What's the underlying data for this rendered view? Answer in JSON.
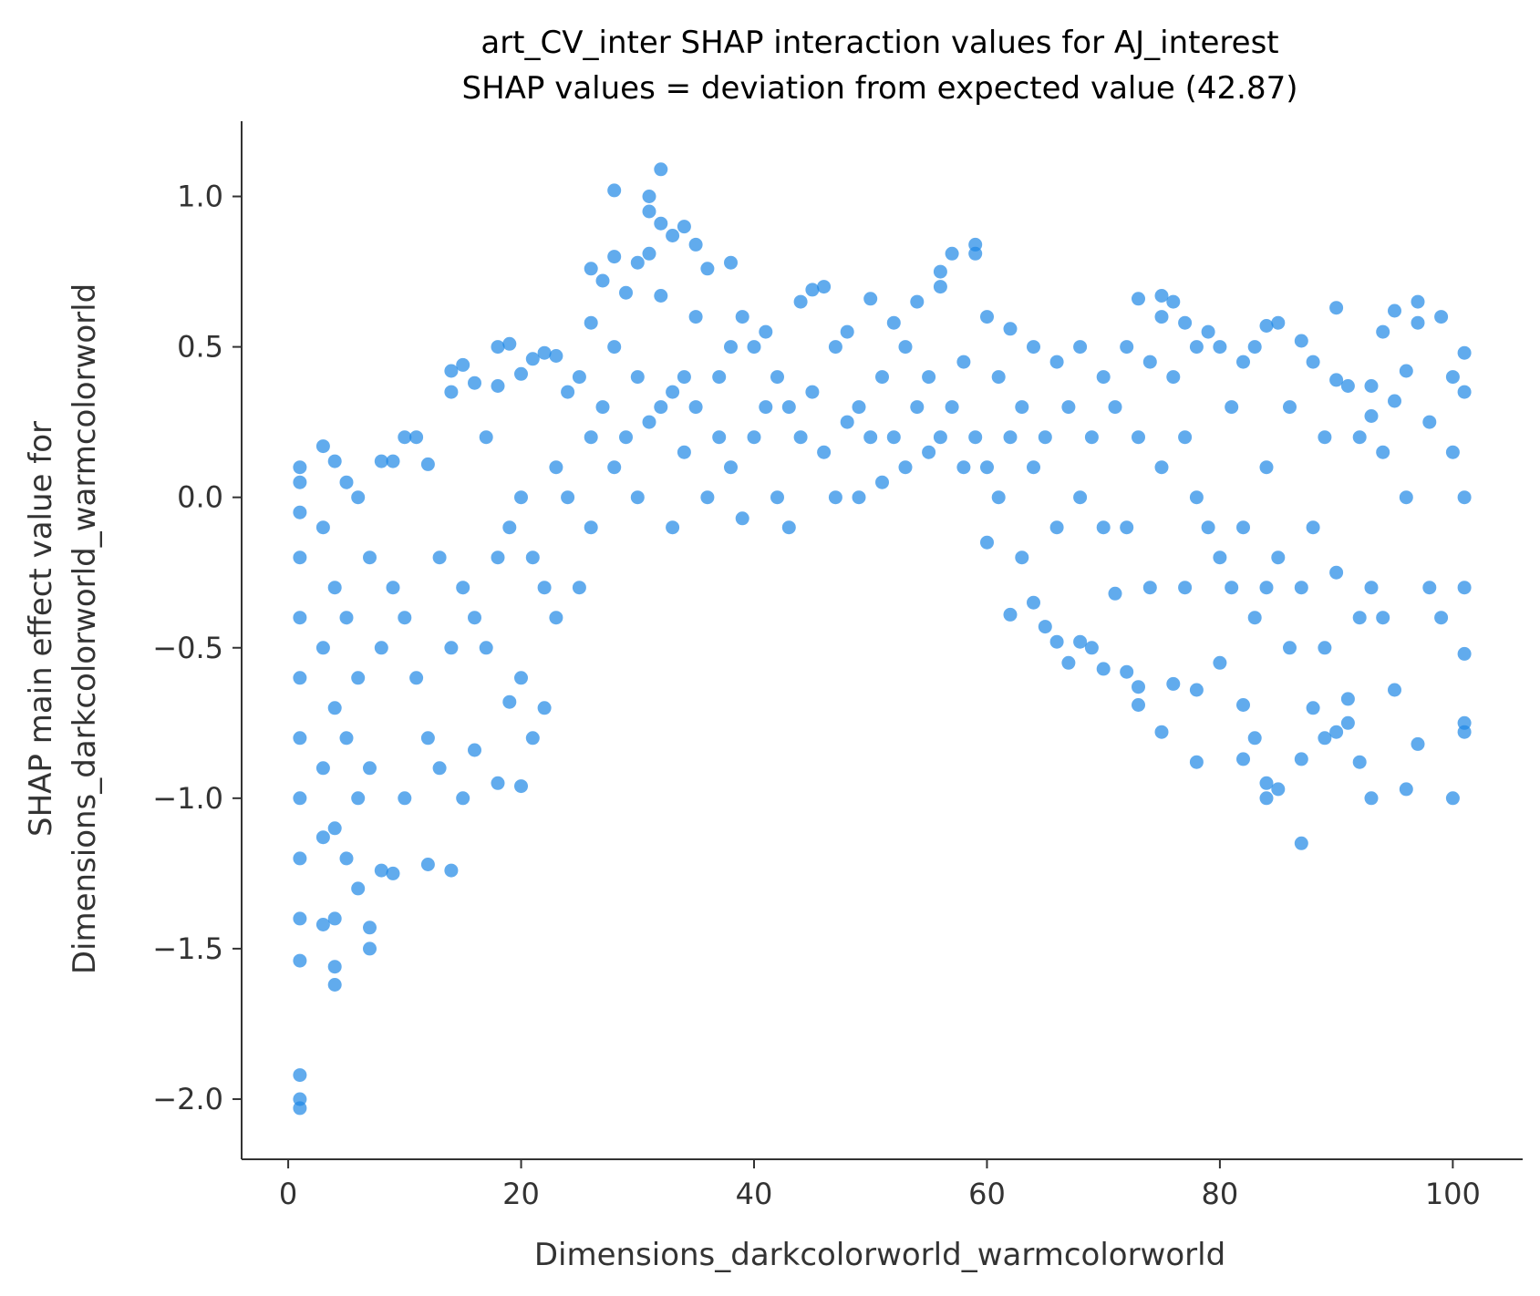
{
  "chart_data": {
    "type": "scatter",
    "title_line1": "art_CV_inter SHAP interaction values for AJ_interest",
    "title_line2": "SHAP values = deviation from expected value (42.87)",
    "xlabel": "Dimensions_darkcolorworld_warmcolorworld",
    "ylabel_line1": "SHAP main effect value for",
    "ylabel_line2": "Dimensions_darkcolorworld_warmcolorworld",
    "xlim": [
      -4,
      106
    ],
    "ylim": [
      -2.2,
      1.25
    ],
    "xticks": [
      0,
      20,
      40,
      60,
      80,
      100
    ],
    "yticks": [
      -2.0,
      -1.5,
      -1.0,
      -0.5,
      0.0,
      0.5,
      1.0
    ],
    "x_tick_labels": [
      "0",
      "20",
      "40",
      "60",
      "80",
      "100"
    ],
    "y_tick_labels": [
      "−2.0",
      "−1.5",
      "−1.0",
      "−0.5",
      "0.0",
      "0.5",
      "1.0"
    ],
    "marker_color": "#1E88E5",
    "grid": false,
    "series": [
      {
        "points": [
          [
            1,
            0.1
          ],
          [
            1,
            0.05
          ],
          [
            1,
            -0.05
          ],
          [
            1,
            -0.2
          ],
          [
            1,
            -0.4
          ],
          [
            1,
            -0.6
          ],
          [
            1,
            -0.8
          ],
          [
            1,
            -1.0
          ],
          [
            1,
            -1.2
          ],
          [
            1,
            -1.4
          ],
          [
            1,
            -1.54
          ],
          [
            1,
            -1.92
          ],
          [
            1,
            -2.0
          ],
          [
            1,
            -2.03
          ],
          [
            3,
            0.17
          ],
          [
            3,
            -0.1
          ],
          [
            3,
            -0.5
          ],
          [
            3,
            -0.9
          ],
          [
            3,
            -1.13
          ],
          [
            3,
            -1.42
          ],
          [
            4,
            0.12
          ],
          [
            4,
            -0.3
          ],
          [
            4,
            -0.7
          ],
          [
            4,
            -1.1
          ],
          [
            4,
            -1.4
          ],
          [
            4,
            -1.56
          ],
          [
            4,
            -1.62
          ],
          [
            5,
            0.05
          ],
          [
            5,
            -0.4
          ],
          [
            5,
            -0.8
          ],
          [
            5,
            -1.2
          ],
          [
            6,
            0.0
          ],
          [
            6,
            -0.6
          ],
          [
            6,
            -1.0
          ],
          [
            6,
            -1.3
          ],
          [
            7,
            -0.2
          ],
          [
            7,
            -0.9
          ],
          [
            7,
            -1.43
          ],
          [
            7,
            -1.5
          ],
          [
            8,
            0.12
          ],
          [
            8,
            -0.5
          ],
          [
            8,
            -1.24
          ],
          [
            9,
            0.12
          ],
          [
            9,
            -0.3
          ],
          [
            9,
            -1.25
          ],
          [
            10,
            0.2
          ],
          [
            10,
            -0.4
          ],
          [
            10,
            -1.0
          ],
          [
            11,
            0.2
          ],
          [
            11,
            -0.6
          ],
          [
            12,
            0.11
          ],
          [
            12,
            -0.8
          ],
          [
            12,
            -1.22
          ],
          [
            13,
            -0.2
          ],
          [
            13,
            -0.9
          ],
          [
            14,
            0.42
          ],
          [
            14,
            0.35
          ],
          [
            14,
            -0.5
          ],
          [
            14,
            -1.24
          ],
          [
            15,
            0.44
          ],
          [
            15,
            -0.3
          ],
          [
            15,
            -1.0
          ],
          [
            16,
            0.38
          ],
          [
            16,
            -0.4
          ],
          [
            16,
            -0.84
          ],
          [
            17,
            0.2
          ],
          [
            17,
            -0.5
          ],
          [
            18,
            0.5
          ],
          [
            18,
            0.37
          ],
          [
            18,
            -0.2
          ],
          [
            18,
            -0.95
          ],
          [
            19,
            0.51
          ],
          [
            19,
            -0.1
          ],
          [
            19,
            -0.68
          ],
          [
            20,
            0.41
          ],
          [
            20,
            0.0
          ],
          [
            20,
            -0.6
          ],
          [
            20,
            -0.96
          ],
          [
            21,
            0.46
          ],
          [
            21,
            -0.2
          ],
          [
            21,
            -0.8
          ],
          [
            22,
            0.48
          ],
          [
            22,
            -0.3
          ],
          [
            22,
            -0.7
          ],
          [
            23,
            0.47
          ],
          [
            23,
            0.1
          ],
          [
            23,
            -0.4
          ],
          [
            24,
            0.35
          ],
          [
            24,
            0.0
          ],
          [
            25,
            0.4
          ],
          [
            25,
            -0.3
          ],
          [
            26,
            0.76
          ],
          [
            26,
            0.58
          ],
          [
            26,
            0.2
          ],
          [
            26,
            -0.1
          ],
          [
            27,
            0.72
          ],
          [
            27,
            0.3
          ],
          [
            28,
            1.02
          ],
          [
            28,
            0.8
          ],
          [
            28,
            0.5
          ],
          [
            28,
            0.1
          ],
          [
            29,
            0.68
          ],
          [
            29,
            0.2
          ],
          [
            30,
            0.78
          ],
          [
            30,
            0.4
          ],
          [
            30,
            0.0
          ],
          [
            31,
            1.0
          ],
          [
            31,
            0.95
          ],
          [
            31,
            0.81
          ],
          [
            31,
            0.25
          ],
          [
            32,
            1.09
          ],
          [
            32,
            0.91
          ],
          [
            32,
            0.67
          ],
          [
            32,
            0.3
          ],
          [
            33,
            0.87
          ],
          [
            33,
            0.35
          ],
          [
            33,
            -0.1
          ],
          [
            34,
            0.9
          ],
          [
            34,
            0.4
          ],
          [
            34,
            0.15
          ],
          [
            35,
            0.84
          ],
          [
            35,
            0.6
          ],
          [
            35,
            0.3
          ],
          [
            36,
            0.76
          ],
          [
            36,
            0.0
          ],
          [
            37,
            0.4
          ],
          [
            37,
            0.2
          ],
          [
            38,
            0.78
          ],
          [
            38,
            0.5
          ],
          [
            38,
            0.1
          ],
          [
            39,
            0.6
          ],
          [
            39,
            -0.07
          ],
          [
            40,
            0.5
          ],
          [
            40,
            0.2
          ],
          [
            41,
            0.55
          ],
          [
            41,
            0.3
          ],
          [
            42,
            0.4
          ],
          [
            42,
            0.0
          ],
          [
            43,
            0.3
          ],
          [
            43,
            -0.1
          ],
          [
            44,
            0.65
          ],
          [
            44,
            0.2
          ],
          [
            45,
            0.69
          ],
          [
            45,
            0.35
          ],
          [
            46,
            0.7
          ],
          [
            46,
            0.15
          ],
          [
            47,
            0.5
          ],
          [
            47,
            0.0
          ],
          [
            48,
            0.55
          ],
          [
            48,
            0.25
          ],
          [
            49,
            0.3
          ],
          [
            49,
            0.0
          ],
          [
            50,
            0.66
          ],
          [
            50,
            0.2
          ],
          [
            51,
            0.4
          ],
          [
            51,
            0.05
          ],
          [
            52,
            0.58
          ],
          [
            52,
            0.2
          ],
          [
            53,
            0.5
          ],
          [
            53,
            0.1
          ],
          [
            54,
            0.65
          ],
          [
            54,
            0.3
          ],
          [
            55,
            0.4
          ],
          [
            55,
            0.15
          ],
          [
            56,
            0.75
          ],
          [
            56,
            0.7
          ],
          [
            56,
            0.2
          ],
          [
            57,
            0.81
          ],
          [
            57,
            0.3
          ],
          [
            58,
            0.45
          ],
          [
            58,
            0.1
          ],
          [
            59,
            0.84
          ],
          [
            59,
            0.81
          ],
          [
            59,
            0.2
          ],
          [
            60,
            0.6
          ],
          [
            60,
            0.1
          ],
          [
            60,
            -0.15
          ],
          [
            61,
            0.4
          ],
          [
            61,
            0.0
          ],
          [
            62,
            0.56
          ],
          [
            62,
            0.2
          ],
          [
            62,
            -0.39
          ],
          [
            63,
            0.3
          ],
          [
            63,
            -0.2
          ],
          [
            64,
            0.5
          ],
          [
            64,
            0.1
          ],
          [
            64,
            -0.35
          ],
          [
            65,
            0.2
          ],
          [
            65,
            -0.43
          ],
          [
            66,
            0.45
          ],
          [
            66,
            -0.1
          ],
          [
            66,
            -0.48
          ],
          [
            67,
            0.3
          ],
          [
            67,
            -0.55
          ],
          [
            68,
            0.5
          ],
          [
            68,
            0.0
          ],
          [
            68,
            -0.48
          ],
          [
            69,
            0.2
          ],
          [
            69,
            -0.5
          ],
          [
            70,
            0.4
          ],
          [
            70,
            -0.1
          ],
          [
            70,
            -0.57
          ],
          [
            71,
            0.3
          ],
          [
            71,
            -0.32
          ],
          [
            72,
            0.5
          ],
          [
            72,
            -0.1
          ],
          [
            72,
            -0.58
          ],
          [
            73,
            0.66
          ],
          [
            73,
            0.2
          ],
          [
            73,
            -0.63
          ],
          [
            73,
            -0.69
          ],
          [
            74,
            0.45
          ],
          [
            74,
            -0.3
          ],
          [
            75,
            0.67
          ],
          [
            75,
            0.6
          ],
          [
            75,
            0.1
          ],
          [
            75,
            -0.78
          ],
          [
            76,
            0.65
          ],
          [
            76,
            0.4
          ],
          [
            76,
            -0.62
          ],
          [
            77,
            0.58
          ],
          [
            77,
            0.2
          ],
          [
            77,
            -0.3
          ],
          [
            78,
            0.5
          ],
          [
            78,
            0.0
          ],
          [
            78,
            -0.64
          ],
          [
            78,
            -0.88
          ],
          [
            79,
            0.55
          ],
          [
            79,
            -0.1
          ],
          [
            80,
            0.5
          ],
          [
            80,
            -0.2
          ],
          [
            80,
            -0.55
          ],
          [
            81,
            0.3
          ],
          [
            81,
            -0.3
          ],
          [
            82,
            0.45
          ],
          [
            82,
            -0.1
          ],
          [
            82,
            -0.69
          ],
          [
            82,
            -0.87
          ],
          [
            83,
            0.5
          ],
          [
            83,
            -0.4
          ],
          [
            83,
            -0.8
          ],
          [
            84,
            0.57
          ],
          [
            84,
            0.1
          ],
          [
            84,
            -0.3
          ],
          [
            84,
            -1.0
          ],
          [
            84,
            -0.95
          ],
          [
            85,
            0.58
          ],
          [
            85,
            -0.2
          ],
          [
            85,
            -0.97
          ],
          [
            86,
            0.3
          ],
          [
            86,
            -0.5
          ],
          [
            87,
            0.52
          ],
          [
            87,
            -0.3
          ],
          [
            87,
            -0.87
          ],
          [
            87,
            -1.15
          ],
          [
            88,
            0.45
          ],
          [
            88,
            -0.1
          ],
          [
            88,
            -0.7
          ],
          [
            89,
            0.2
          ],
          [
            89,
            -0.5
          ],
          [
            89,
            -0.8
          ],
          [
            90,
            0.63
          ],
          [
            90,
            0.39
          ],
          [
            90,
            -0.25
          ],
          [
            90,
            -0.78
          ],
          [
            91,
            0.37
          ],
          [
            91,
            -0.67
          ],
          [
            91,
            -0.75
          ],
          [
            92,
            0.2
          ],
          [
            92,
            -0.4
          ],
          [
            92,
            -0.88
          ],
          [
            93,
            0.37
          ],
          [
            93,
            0.27
          ],
          [
            93,
            -0.3
          ],
          [
            93,
            -1.0
          ],
          [
            94,
            0.55
          ],
          [
            94,
            0.15
          ],
          [
            94,
            -0.4
          ],
          [
            95,
            0.62
          ],
          [
            95,
            0.32
          ],
          [
            95,
            -0.64
          ],
          [
            96,
            0.42
          ],
          [
            96,
            0.0
          ],
          [
            96,
            -0.97
          ],
          [
            97,
            0.65
          ],
          [
            97,
            0.58
          ],
          [
            97,
            -0.82
          ],
          [
            98,
            0.25
          ],
          [
            98,
            -0.3
          ],
          [
            99,
            0.6
          ],
          [
            99,
            -0.4
          ],
          [
            100,
            0.4
          ],
          [
            100,
            0.15
          ],
          [
            100,
            -1.0
          ],
          [
            101,
            0.48
          ],
          [
            101,
            0.35
          ],
          [
            101,
            0.0
          ],
          [
            101,
            -0.3
          ],
          [
            101,
            -0.52
          ],
          [
            101,
            -0.75
          ],
          [
            101,
            -0.78
          ]
        ]
      }
    ]
  }
}
